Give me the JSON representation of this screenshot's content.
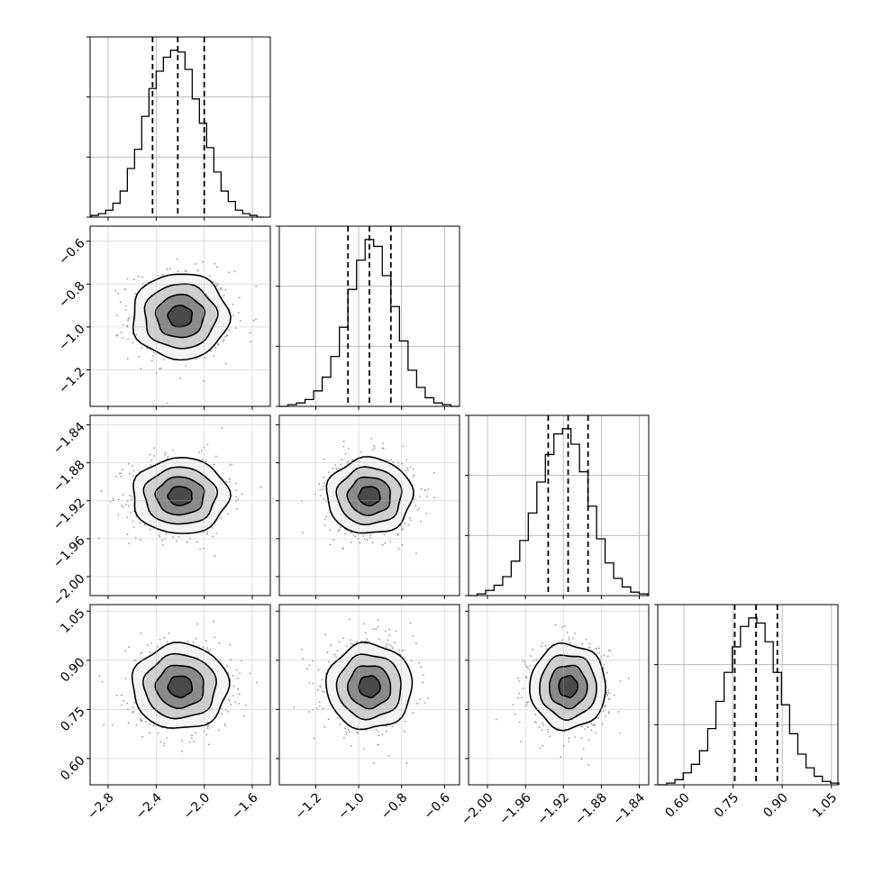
{
  "chart_data": {
    "type": "corner",
    "layout": "lower-triangle 4x4",
    "grid": true,
    "colors": {
      "line": "#000000",
      "grid": "#b0b0b0",
      "samples": "#9a9a9a",
      "density_dark": "#111111",
      "density_light": "#f2f2f2"
    },
    "parameters": [
      {
        "range": [
          -2.95,
          -1.45
        ],
        "ticks": [
          -2.8,
          -2.4,
          -2.0,
          -1.6
        ],
        "tick_labels": [
          "−2.8",
          "−2.4",
          "−2.0",
          "−1.6"
        ],
        "mean": -2.2,
        "sigma": 0.2,
        "quantiles": [
          -2.43,
          -2.22,
          -2.0
        ],
        "histogram_bin_centers": [
          -2.91,
          -2.85,
          -2.79,
          -2.73,
          -2.67,
          -2.61,
          -2.55,
          -2.49,
          -2.43,
          -2.37,
          -2.31,
          -2.25,
          -2.19,
          -2.13,
          -2.07,
          -2.01,
          -1.95,
          -1.89,
          -1.83,
          -1.77,
          -1.71,
          -1.65,
          -1.59,
          -1.53
        ],
        "histogram_counts": [
          1,
          2,
          4,
          8,
          15,
          28,
          39,
          58,
          74,
          84,
          92,
          96,
          95,
          85,
          68,
          54,
          40,
          26,
          15,
          9,
          4,
          2,
          1,
          0
        ]
      },
      {
        "range": [
          -1.37,
          -0.53
        ],
        "ticks": [
          -1.2,
          -1.0,
          -0.8,
          -0.6
        ],
        "tick_labels": [
          "−1.2",
          "−1.0",
          "−0.8",
          "−0.6"
        ],
        "y_tick_labels": [
          "−1.2",
          "−1.0",
          "−0.8",
          "−0.6"
        ],
        "mean": -0.95,
        "sigma": 0.1,
        "quantiles": [
          -1.05,
          -0.95,
          -0.85
        ],
        "histogram_bin_centers": [
          -1.35,
          -1.31,
          -1.27,
          -1.23,
          -1.19,
          -1.15,
          -1.11,
          -1.07,
          -1.03,
          -0.99,
          -0.95,
          -0.91,
          -0.87,
          -0.83,
          -0.79,
          -0.75,
          -0.71,
          -0.67,
          -0.63,
          -0.59,
          -0.55
        ],
        "histogram_counts": [
          0,
          1,
          2,
          4,
          9,
          17,
          29,
          46,
          68,
          85,
          97,
          93,
          76,
          58,
          38,
          21,
          11,
          5,
          2,
          1,
          0
        ]
      },
      {
        "range": [
          -2.02,
          -1.83
        ],
        "ticks": [
          -2.0,
          -1.96,
          -1.92,
          -1.88,
          -1.84
        ],
        "tick_labels": [
          "−2.00",
          "−1.96",
          "−1.92",
          "−1.88",
          "−1.84"
        ],
        "y_tick_labels": [
          "−2.00",
          "−1.96",
          "−1.92",
          "−1.88",
          "−1.84"
        ],
        "mean": -1.915,
        "sigma": 0.02,
        "quantiles": [
          -1.936,
          -1.915,
          -1.894
        ],
        "histogram_bin_centers": [
          -2.0155,
          -2.0065,
          -1.9975,
          -1.9885,
          -1.9795,
          -1.9705,
          -1.9615,
          -1.9525,
          -1.9435,
          -1.9345,
          -1.9255,
          -1.9165,
          -1.9075,
          -1.8985,
          -1.8895,
          -1.8805,
          -1.8715,
          -1.8625,
          -1.8535,
          -1.8445,
          -1.8355
        ],
        "histogram_counts": [
          0,
          1,
          3,
          6,
          11,
          20,
          32,
          48,
          66,
          82,
          94,
          97,
          88,
          72,
          52,
          33,
          19,
          10,
          5,
          2,
          1
        ]
      },
      {
        "range": [
          0.52,
          1.07
        ],
        "ticks": [
          0.6,
          0.75,
          0.9,
          1.05
        ],
        "tick_labels": [
          "0.60",
          "0.75",
          "0.90",
          "1.05"
        ],
        "y_tick_labels": [
          "0.60",
          "0.75",
          "0.90",
          "1.05"
        ],
        "mean": 0.82,
        "sigma": 0.065,
        "quantiles": [
          0.755,
          0.82,
          0.885
        ],
        "histogram_bin_centers": [
          0.535,
          0.56,
          0.585,
          0.61,
          0.635,
          0.66,
          0.685,
          0.71,
          0.735,
          0.76,
          0.785,
          0.81,
          0.835,
          0.86,
          0.885,
          0.91,
          0.935,
          0.96,
          0.985,
          1.01,
          1.035,
          1.06
        ],
        "histogram_counts": [
          0,
          1,
          3,
          7,
          12,
          20,
          33,
          49,
          66,
          81,
          93,
          98,
          95,
          84,
          66,
          47,
          30,
          18,
          10,
          5,
          2,
          1
        ]
      }
    ]
  }
}
